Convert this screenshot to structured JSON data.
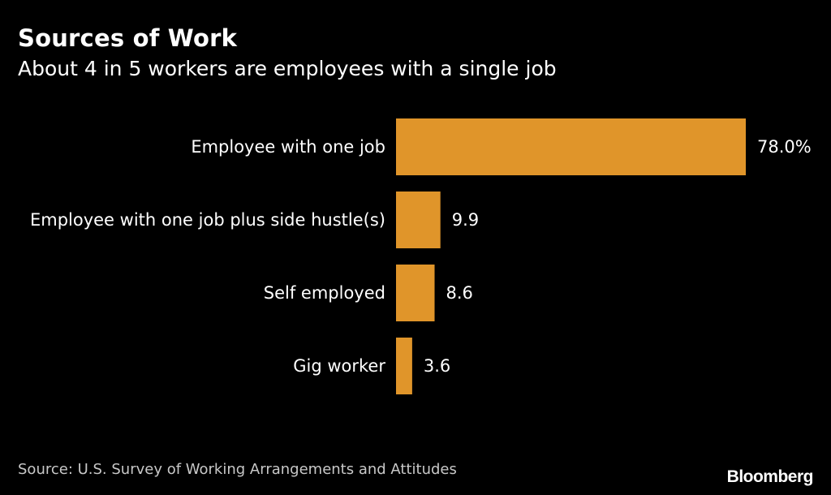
{
  "header": {
    "title": "Sources of Work",
    "subtitle": "About 4 in 5 workers are employees with a single job"
  },
  "footer": {
    "source": "Source: U.S. Survey of Working Arrangements and Attitudes",
    "brand": "Bloomberg"
  },
  "colors": {
    "background": "#000000",
    "bar": "#e0952a",
    "text": "#ffffff",
    "source_text": "#c8c8c8"
  },
  "chart_data": {
    "type": "bar",
    "orientation": "horizontal",
    "title": "Sources of Work",
    "subtitle": "About 4 in 5 workers are employees with a single job",
    "categories": [
      "Employee with one job",
      "Employee with one job plus side hustle(s)",
      "Self employed",
      "Gig worker"
    ],
    "values": [
      78.0,
      9.9,
      8.6,
      3.6
    ],
    "value_labels": [
      "78.0%",
      "9.9",
      "8.6",
      "3.6"
    ],
    "unit": "%",
    "xlim": [
      0,
      78.0
    ],
    "grid": false,
    "legend": "none"
  }
}
